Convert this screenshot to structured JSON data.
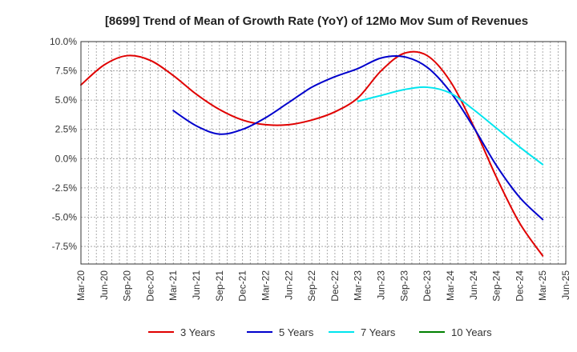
{
  "chart_data": {
    "type": "line",
    "title": "[8699]  Trend of Mean of Growth Rate (YoY) of 12Mo Mov Sum of Revenues",
    "xlabel": "",
    "ylabel": "",
    "ylim": [
      -9.0,
      10.0
    ],
    "yticks": [
      10.0,
      7.5,
      5.0,
      2.5,
      0.0,
      -2.5,
      -5.0,
      -7.5
    ],
    "ytick_labels": [
      "10.0%",
      "7.5%",
      "5.0%",
      "2.5%",
      "0.0%",
      "-2.5%",
      "-5.0%",
      "-7.5%"
    ],
    "x_categories": [
      "Mar-20",
      "Jun-20",
      "Sep-20",
      "Dec-20",
      "Mar-21",
      "Jun-21",
      "Sep-21",
      "Dec-21",
      "Mar-22",
      "Jun-22",
      "Sep-22",
      "Dec-22",
      "Mar-23",
      "Jun-23",
      "Sep-23",
      "Dec-23",
      "Mar-24",
      "Jun-24",
      "Sep-24",
      "Dec-24",
      "Mar-25",
      "Jun-25"
    ],
    "grid": true,
    "legend_position": "bottom",
    "series": [
      {
        "name": "3 Years",
        "color": "#e00000",
        "points": [
          [
            0,
            6.3
          ],
          [
            1,
            8.0
          ],
          [
            2,
            8.8
          ],
          [
            3,
            8.4
          ],
          [
            4,
            7.1
          ],
          [
            5,
            5.5
          ],
          [
            6,
            4.2
          ],
          [
            7,
            3.3
          ],
          [
            8,
            2.9
          ],
          [
            9,
            2.9
          ],
          [
            10,
            3.3
          ],
          [
            11,
            4.0
          ],
          [
            12,
            5.2
          ],
          [
            13,
            7.5
          ],
          [
            14,
            9.0
          ],
          [
            15,
            8.8
          ],
          [
            16,
            6.6
          ],
          [
            17,
            2.8
          ],
          [
            18,
            -1.6
          ],
          [
            19,
            -5.5
          ],
          [
            20,
            -8.3
          ]
        ]
      },
      {
        "name": "5 Years",
        "color": "#0000cc",
        "points": [
          [
            4,
            4.1
          ],
          [
            5,
            2.8
          ],
          [
            6,
            2.1
          ],
          [
            7,
            2.5
          ],
          [
            8,
            3.5
          ],
          [
            9,
            4.8
          ],
          [
            10,
            6.1
          ],
          [
            11,
            7.0
          ],
          [
            12,
            7.7
          ],
          [
            13,
            8.6
          ],
          [
            14,
            8.7
          ],
          [
            15,
            7.8
          ],
          [
            16,
            5.7
          ],
          [
            17,
            2.7
          ],
          [
            18,
            -0.6
          ],
          [
            19,
            -3.3
          ],
          [
            20,
            -5.2
          ]
        ]
      },
      {
        "name": "7 Years",
        "color": "#00e5ee",
        "points": [
          [
            12,
            4.9
          ],
          [
            13,
            5.4
          ],
          [
            14,
            5.9
          ],
          [
            15,
            6.1
          ],
          [
            16,
            5.6
          ],
          [
            17,
            4.2
          ],
          [
            18,
            2.6
          ],
          [
            19,
            1.0
          ],
          [
            20,
            -0.5
          ]
        ]
      },
      {
        "name": "10 Years",
        "color": "#008000",
        "points": []
      }
    ]
  }
}
